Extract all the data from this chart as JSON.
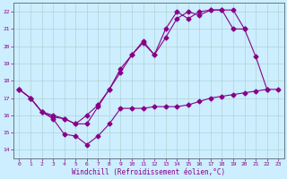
{
  "xlabel": "Windchill (Refroidissement éolien,°C)",
  "background_color": "#cceeff",
  "grid_color": "#b0d4d4",
  "line_color": "#880088",
  "xlim": [
    -0.5,
    23.5
  ],
  "ylim": [
    13.5,
    22.5
  ],
  "xticks": [
    0,
    1,
    2,
    3,
    4,
    5,
    6,
    7,
    8,
    9,
    10,
    11,
    12,
    13,
    14,
    15,
    16,
    17,
    18,
    19,
    20,
    21,
    22,
    23
  ],
  "yticks": [
    14,
    15,
    16,
    17,
    18,
    19,
    20,
    21,
    22
  ],
  "series1_x": [
    0,
    1,
    2,
    3,
    4,
    5,
    6,
    7,
    8,
    9,
    10,
    11,
    12,
    13,
    14,
    15,
    16,
    17,
    18,
    19,
    20,
    21,
    22
  ],
  "series1_y": [
    17.5,
    17.0,
    16.2,
    15.8,
    14.9,
    14.8,
    14.3,
    14.8,
    15.5,
    16.4,
    16.4,
    16.4,
    16.5,
    16.5,
    16.5,
    16.6,
    16.8,
    17.0,
    17.1,
    17.2,
    17.3,
    17.4,
    17.5
  ],
  "series2_x": [
    0,
    1,
    2,
    3,
    4,
    5,
    6,
    7,
    8,
    9,
    10,
    11,
    12,
    13,
    14,
    15,
    16,
    17,
    18,
    19,
    20,
    21,
    22,
    23
  ],
  "series2_y": [
    17.5,
    17.0,
    16.2,
    15.9,
    15.8,
    15.5,
    16.0,
    16.6,
    17.5,
    18.7,
    19.5,
    20.3,
    19.5,
    20.5,
    21.6,
    22.0,
    21.8,
    22.1,
    22.1,
    22.1,
    21.0,
    19.4,
    17.5,
    17.5
  ],
  "series3_x": [
    0,
    1,
    2,
    3,
    4,
    5,
    6,
    7,
    8,
    9,
    10,
    11,
    12,
    13,
    14,
    15,
    16,
    17,
    18,
    19,
    20
  ],
  "series3_y": [
    17.5,
    17.0,
    16.2,
    16.0,
    15.8,
    15.5,
    15.5,
    16.5,
    17.5,
    18.5,
    19.5,
    20.2,
    19.5,
    21.0,
    22.0,
    21.6,
    22.0,
    22.1,
    22.1,
    21.0,
    21.0
  ]
}
